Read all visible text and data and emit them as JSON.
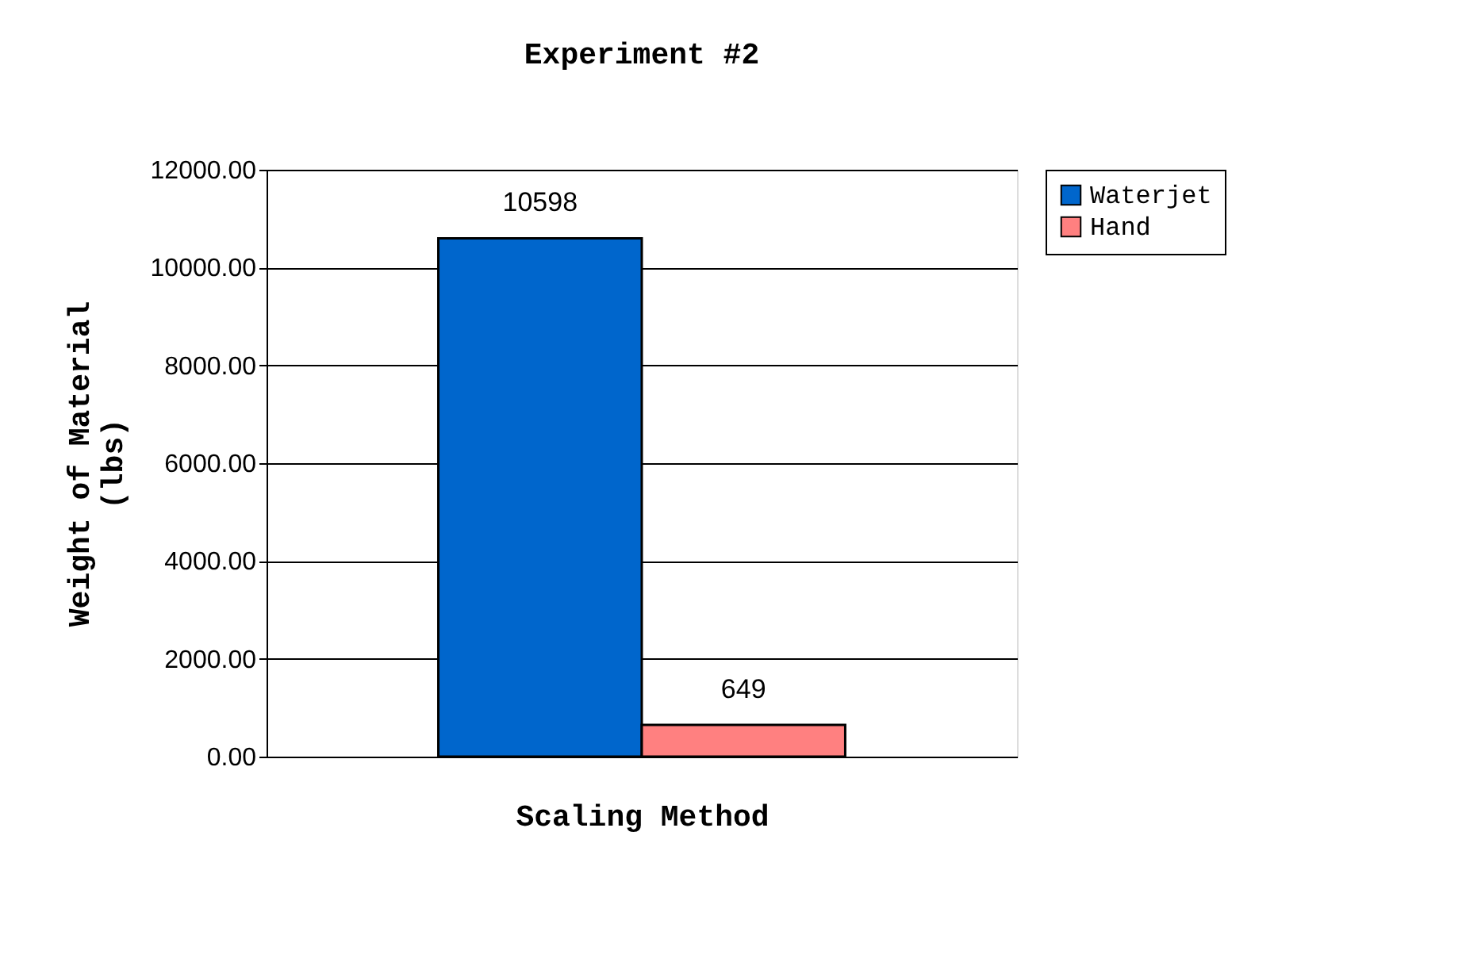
{
  "chart_data": {
    "type": "bar",
    "title": "Experiment #2",
    "xlabel": "Scaling Method",
    "ylabel": "Weight of Material (lbs)",
    "categories": [
      null
    ],
    "series": [
      {
        "name": "Waterjet",
        "color": "#0066cc",
        "values": [
          10598
        ]
      },
      {
        "name": "Hand",
        "color": "#ff8080",
        "values": [
          649
        ]
      }
    ],
    "ylim": [
      0,
      12000
    ],
    "yticks": [
      {
        "value": 0,
        "label": "0.00"
      },
      {
        "value": 2000,
        "label": "2000.00"
      },
      {
        "value": 4000,
        "label": "4000.00"
      },
      {
        "value": 6000,
        "label": "6000.00"
      },
      {
        "value": 8000,
        "label": "8000.00"
      },
      {
        "value": 10000,
        "label": "10000.00"
      },
      {
        "value": 12000,
        "label": "12000.00"
      }
    ],
    "grid": "y",
    "legend": "right",
    "data_labels": true,
    "tick_labels": "y"
  }
}
